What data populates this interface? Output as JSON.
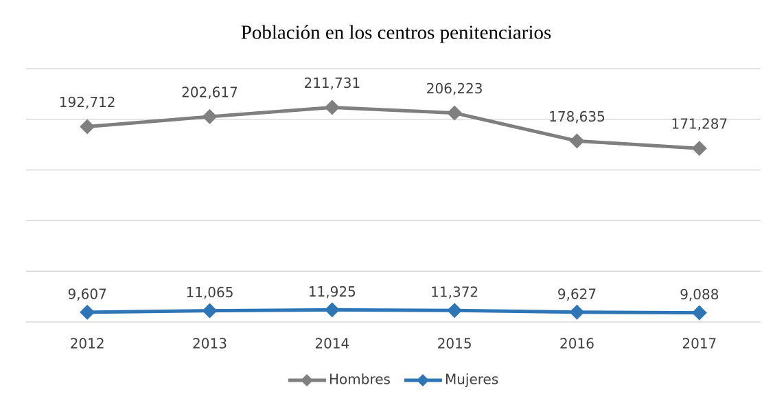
{
  "chart_data": {
    "type": "line",
    "title": "Población en los centros penitenciarios",
    "categories": [
      "2012",
      "2013",
      "2014",
      "2015",
      "2016",
      "2017"
    ],
    "series": [
      {
        "name": "Hombres",
        "color": "#7f7f7f",
        "values": [
          192712,
          202617,
          211731,
          206223,
          178635,
          171287
        ],
        "value_labels": [
          "192,712",
          "202,617",
          "211,731",
          "206,223",
          "178,635",
          "171,287"
        ]
      },
      {
        "name": "Mujeres",
        "color": "#2e75b6",
        "values": [
          9607,
          11065,
          11925,
          11372,
          9627,
          9088
        ],
        "value_labels": [
          "9,607",
          "11,065",
          "11,925",
          "11,372",
          "9,627",
          "9,088"
        ]
      }
    ],
    "ylim": [
      0,
      250000
    ],
    "yticks": [
      0,
      50000,
      100000,
      150000,
      200000,
      250000
    ],
    "grid": true,
    "legend": "bottom"
  }
}
